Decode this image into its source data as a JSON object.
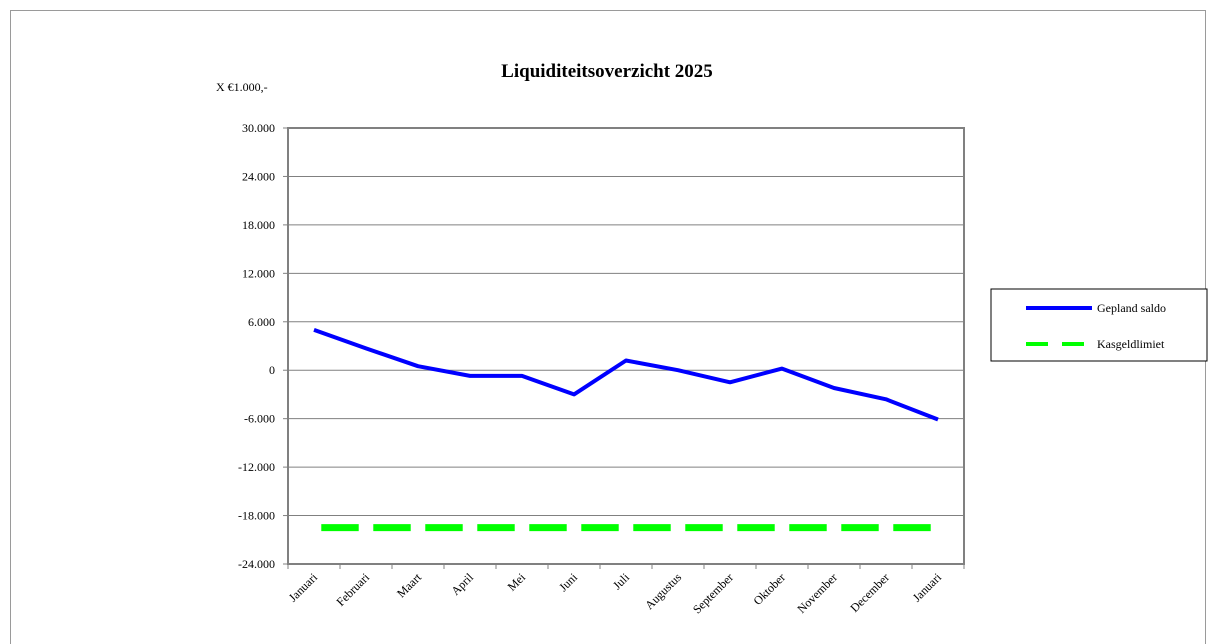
{
  "chart_data": {
    "type": "line",
    "title": "Liquiditeitsoverzicht  2025",
    "ylabel": "X €1.000,-",
    "xlabel": "",
    "ylim": [
      -24000,
      30000
    ],
    "yticks": [
      30000,
      24000,
      18000,
      12000,
      6000,
      0,
      -6000,
      -12000,
      -18000,
      -24000
    ],
    "ytick_labels": [
      "30.000",
      "24.000",
      "18.000",
      "12.000",
      "6.000",
      "0",
      "-6.000",
      "-12.000",
      "-18.000",
      "-24.000"
    ],
    "categories": [
      "Januari",
      "Februari",
      "Maart",
      "April",
      "Mei",
      "Juni",
      "Juli",
      "Augustus",
      "September",
      "Oktober",
      "November",
      "December",
      "Januari"
    ],
    "grid": true,
    "legend_position": "right",
    "series": [
      {
        "name": "Gepland saldo",
        "color": "#0000ff",
        "style": "solid",
        "values": [
          5000,
          2700,
          500,
          -700,
          -700,
          -3000,
          1200,
          0,
          -1500,
          200,
          -2200,
          -3600,
          -6100
        ]
      },
      {
        "name": "Kasgeldlimiet",
        "color": "#00ff00",
        "style": "dashed",
        "values": [
          -19500,
          -19500,
          -19500,
          -19500,
          -19500,
          -19500,
          -19500,
          -19500,
          -19500,
          -19500,
          -19500,
          -19500,
          -19500
        ]
      }
    ]
  }
}
